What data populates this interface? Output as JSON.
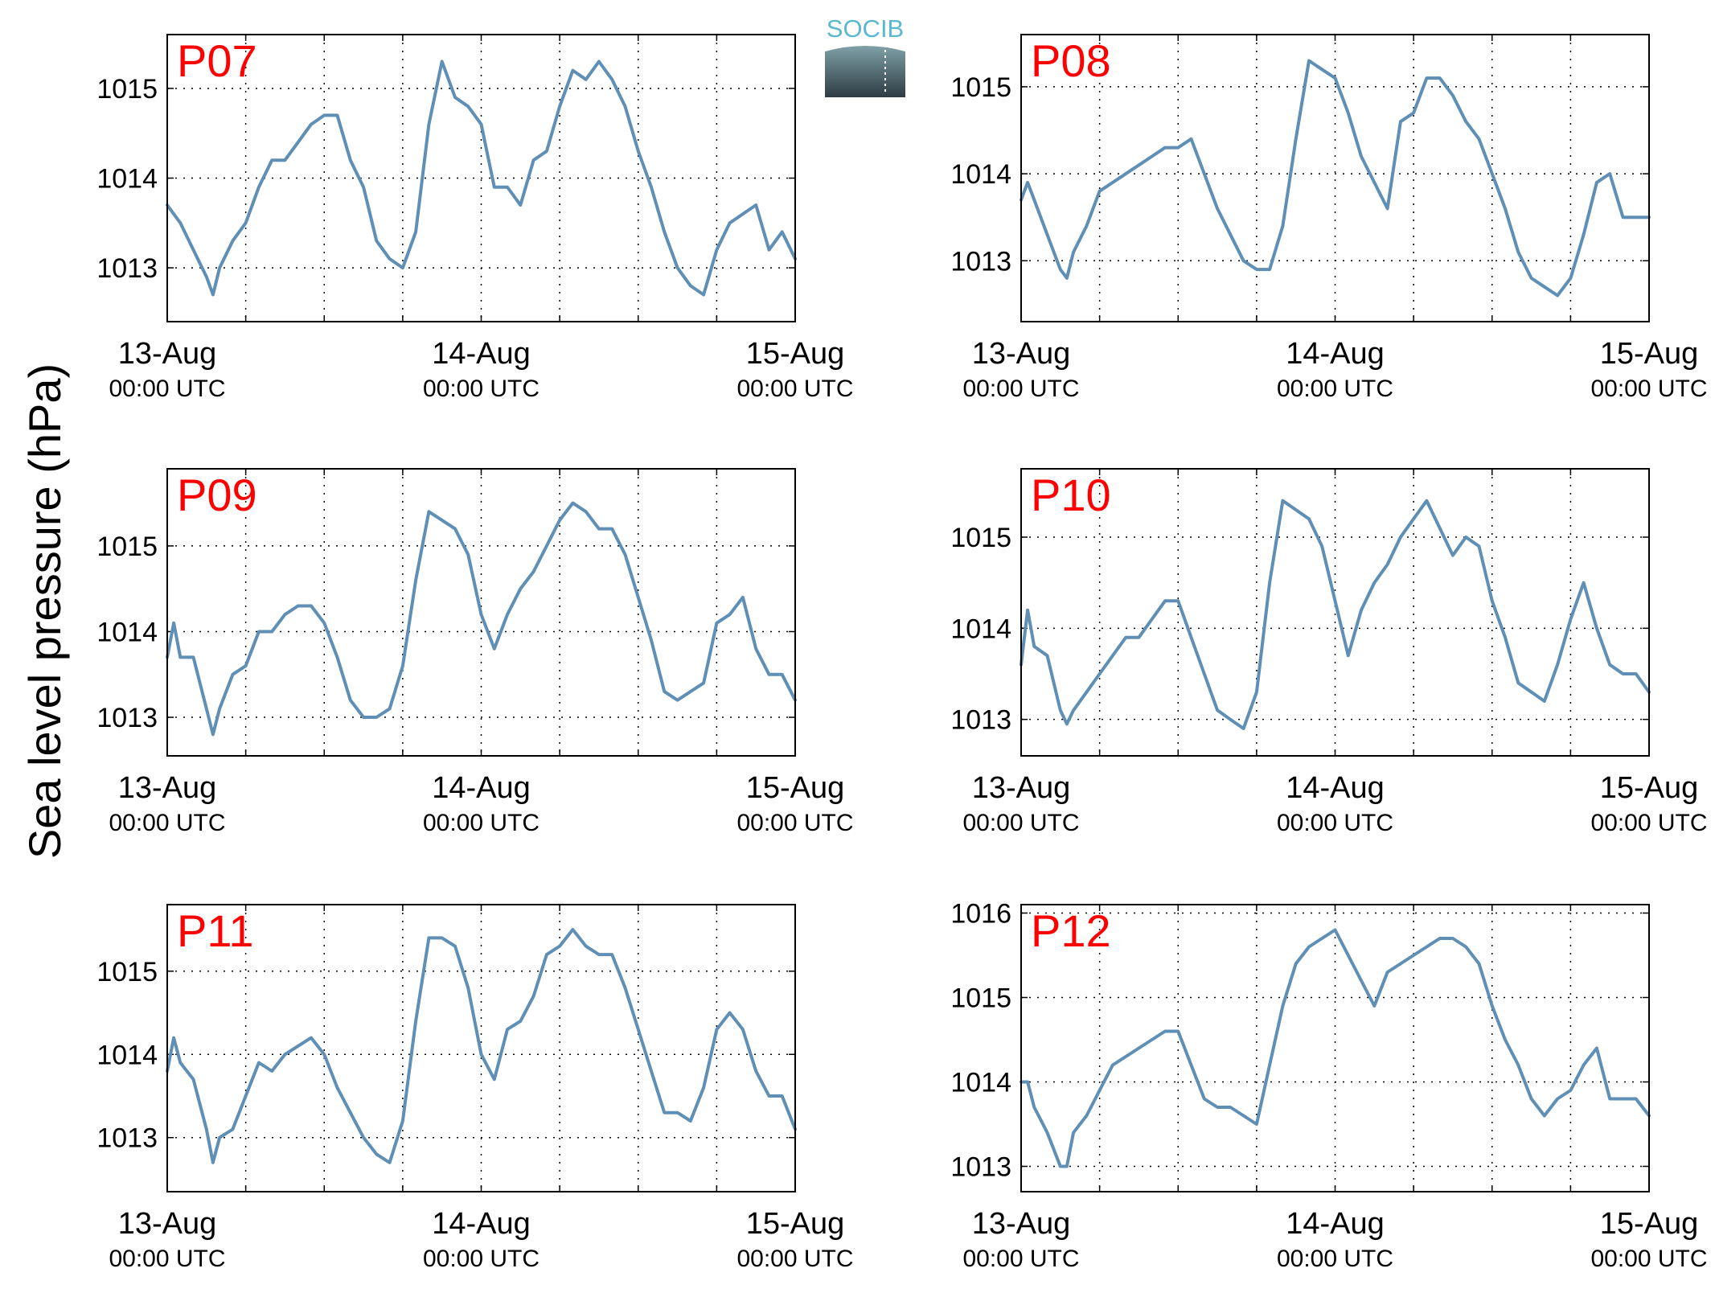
{
  "figure": {
    "ylabel": "Sea level pressure (hPa)",
    "logo": {
      "text": "SOCIB",
      "colors": {
        "text": "#5ab8cf",
        "box_top": "#7fa1a7",
        "box_bottom": "#2e3b44"
      }
    },
    "line_color": "#5f8fb5",
    "label_color": "#ff0000"
  },
  "chart_data": [
    {
      "type": "line",
      "name": "P07",
      "label": "P07",
      "xlim": [
        0,
        48
      ],
      "ylim": [
        1012.4,
        1015.6
      ],
      "yticks": [
        1013,
        1014,
        1015
      ],
      "x_ticks": [
        {
          "x": 0,
          "line1": "13-Aug",
          "line2": "00:00 UTC"
        },
        {
          "x": 24,
          "line1": "14-Aug",
          "line2": "00:00 UTC"
        },
        {
          "x": 48,
          "line1": "15-Aug",
          "line2": "00:00 UTC"
        }
      ],
      "x_grid": [
        6,
        12,
        18,
        24,
        30,
        36,
        42
      ],
      "x": [
        0,
        1,
        2,
        3,
        3.5,
        4,
        5,
        6,
        7,
        8,
        9,
        10,
        11,
        12,
        13,
        14,
        15,
        16,
        17,
        18,
        19,
        20,
        21,
        22,
        23,
        24,
        25,
        26,
        27,
        28,
        29,
        30,
        31,
        32,
        33,
        34,
        35,
        36,
        37,
        38,
        39,
        40,
        41,
        42,
        43,
        44,
        45,
        46,
        47,
        48
      ],
      "y": [
        1013.7,
        1013.5,
        1013.2,
        1012.9,
        1012.7,
        1013.0,
        1013.3,
        1013.5,
        1013.9,
        1014.2,
        1014.2,
        1014.4,
        1014.6,
        1014.7,
        1014.7,
        1014.2,
        1013.9,
        1013.3,
        1013.1,
        1013.0,
        1013.4,
        1014.6,
        1015.3,
        1014.9,
        1014.8,
        1014.6,
        1013.9,
        1013.9,
        1013.7,
        1014.2,
        1014.3,
        1014.8,
        1015.2,
        1015.1,
        1015.3,
        1015.1,
        1014.8,
        1014.3,
        1013.9,
        1013.4,
        1013.0,
        1012.8,
        1012.7,
        1013.2,
        1013.5,
        1013.6,
        1013.7,
        1013.2,
        1013.4,
        1013.1
      ]
    },
    {
      "type": "line",
      "name": "P08",
      "label": "P08",
      "xlim": [
        0,
        48
      ],
      "ylim": [
        1012.3,
        1015.6
      ],
      "yticks": [
        1013,
        1014,
        1015
      ],
      "x_ticks": [
        {
          "x": 0,
          "line1": "13-Aug",
          "line2": "00:00 UTC"
        },
        {
          "x": 24,
          "line1": "14-Aug",
          "line2": "00:00 UTC"
        },
        {
          "x": 48,
          "line1": "15-Aug",
          "line2": "00:00 UTC"
        }
      ],
      "x_grid": [
        6,
        12,
        18,
        24,
        30,
        36,
        42
      ],
      "x": [
        0,
        0.5,
        1,
        2,
        3,
        3.5,
        4,
        5,
        6,
        7,
        8,
        9,
        10,
        11,
        12,
        13,
        14,
        15,
        16,
        17,
        18,
        19,
        20,
        21,
        22,
        23,
        24,
        25,
        26,
        27,
        28,
        29,
        30,
        31,
        32,
        33,
        34,
        35,
        36,
        37,
        38,
        39,
        40,
        41,
        42,
        43,
        44,
        45,
        46,
        47,
        48
      ],
      "y": [
        1013.7,
        1013.9,
        1013.7,
        1013.3,
        1012.9,
        1012.8,
        1013.1,
        1013.4,
        1013.8,
        1013.9,
        1014.0,
        1014.1,
        1014.2,
        1014.3,
        1014.3,
        1014.4,
        1014.0,
        1013.6,
        1013.3,
        1013.0,
        1012.9,
        1012.9,
        1013.4,
        1014.4,
        1015.3,
        1015.2,
        1015.1,
        1014.7,
        1014.2,
        1013.9,
        1013.6,
        1014.6,
        1014.7,
        1015.1,
        1015.1,
        1014.9,
        1014.6,
        1014.4,
        1014.0,
        1013.6,
        1013.1,
        1012.8,
        1012.7,
        1012.6,
        1012.8,
        1013.3,
        1013.9,
        1014.0,
        1013.5,
        1013.5,
        1013.5
      ]
    },
    {
      "type": "line",
      "name": "P09",
      "label": "P09",
      "xlim": [
        0,
        48
      ],
      "ylim": [
        1012.55,
        1015.9
      ],
      "yticks": [
        1013,
        1014,
        1015
      ],
      "x_ticks": [
        {
          "x": 0,
          "line1": "13-Aug",
          "line2": "00:00 UTC"
        },
        {
          "x": 24,
          "line1": "14-Aug",
          "line2": "00:00 UTC"
        },
        {
          "x": 48,
          "line1": "15-Aug",
          "line2": "00:00 UTC"
        }
      ],
      "x_grid": [
        6,
        12,
        18,
        24,
        30,
        36,
        42
      ],
      "x": [
        0,
        0.5,
        1,
        2,
        3,
        3.5,
        4,
        5,
        6,
        7,
        8,
        9,
        10,
        11,
        12,
        13,
        14,
        15,
        16,
        17,
        18,
        19,
        20,
        21,
        22,
        23,
        24,
        25,
        26,
        27,
        28,
        29,
        30,
        31,
        32,
        33,
        34,
        35,
        36,
        37,
        38,
        39,
        40,
        41,
        42,
        43,
        44,
        45,
        46,
        47,
        48
      ],
      "y": [
        1013.7,
        1014.1,
        1013.7,
        1013.7,
        1013.1,
        1012.8,
        1013.1,
        1013.5,
        1013.6,
        1014.0,
        1014.0,
        1014.2,
        1014.3,
        1014.3,
        1014.1,
        1013.7,
        1013.2,
        1013.0,
        1013.0,
        1013.1,
        1013.6,
        1014.6,
        1015.4,
        1015.3,
        1015.2,
        1014.9,
        1014.2,
        1013.8,
        1014.2,
        1014.5,
        1014.7,
        1015.0,
        1015.3,
        1015.5,
        1015.4,
        1015.2,
        1015.2,
        1014.9,
        1014.4,
        1013.9,
        1013.3,
        1013.2,
        1013.3,
        1013.4,
        1014.1,
        1014.2,
        1014.4,
        1013.8,
        1013.5,
        1013.5,
        1013.2
      ]
    },
    {
      "type": "line",
      "name": "P10",
      "label": "P10",
      "xlim": [
        0,
        48
      ],
      "ylim": [
        1012.6,
        1015.75
      ],
      "yticks": [
        1013,
        1014,
        1015
      ],
      "x_ticks": [
        {
          "x": 0,
          "line1": "13-Aug",
          "line2": "00:00 UTC"
        },
        {
          "x": 24,
          "line1": "14-Aug",
          "line2": "00:00 UTC"
        },
        {
          "x": 48,
          "line1": "15-Aug",
          "line2": "00:00 UTC"
        }
      ],
      "x_grid": [
        6,
        12,
        18,
        24,
        30,
        36,
        42
      ],
      "x": [
        0,
        0.5,
        1,
        2,
        3,
        3.5,
        4,
        5,
        6,
        7,
        8,
        9,
        10,
        11,
        12,
        13,
        14,
        15,
        16,
        17,
        18,
        19,
        20,
        21,
        22,
        23,
        24,
        25,
        26,
        27,
        28,
        29,
        30,
        31,
        32,
        33,
        34,
        35,
        36,
        37,
        38,
        39,
        40,
        41,
        42,
        43,
        44,
        45,
        46,
        47,
        48
      ],
      "y": [
        1013.6,
        1014.2,
        1013.8,
        1013.7,
        1013.1,
        1012.95,
        1013.1,
        1013.3,
        1013.5,
        1013.7,
        1013.9,
        1013.9,
        1014.1,
        1014.3,
        1014.3,
        1013.9,
        1013.5,
        1013.1,
        1013.0,
        1012.9,
        1013.3,
        1014.5,
        1015.4,
        1015.3,
        1015.2,
        1014.9,
        1014.3,
        1013.7,
        1014.2,
        1014.5,
        1014.7,
        1015.0,
        1015.2,
        1015.4,
        1015.1,
        1014.8,
        1015.0,
        1014.9,
        1014.3,
        1013.9,
        1013.4,
        1013.3,
        1013.2,
        1013.6,
        1014.1,
        1014.5,
        1014.0,
        1013.6,
        1013.5,
        1013.5,
        1013.3
      ]
    },
    {
      "type": "line",
      "name": "P11",
      "label": "P11",
      "xlim": [
        0,
        48
      ],
      "ylim": [
        1012.35,
        1015.8
      ],
      "yticks": [
        1013,
        1014,
        1015
      ],
      "x_ticks": [
        {
          "x": 0,
          "line1": "13-Aug",
          "line2": "00:00 UTC"
        },
        {
          "x": 24,
          "line1": "14-Aug",
          "line2": "00:00 UTC"
        },
        {
          "x": 48,
          "line1": "15-Aug",
          "line2": "00:00 UTC"
        }
      ],
      "x_grid": [
        6,
        12,
        18,
        24,
        30,
        36,
        42
      ],
      "x": [
        0,
        0.5,
        1,
        2,
        3,
        3.5,
        4,
        5,
        6,
        7,
        8,
        9,
        10,
        11,
        12,
        13,
        14,
        15,
        16,
        17,
        18,
        19,
        20,
        21,
        22,
        23,
        24,
        25,
        26,
        27,
        28,
        29,
        30,
        31,
        32,
        33,
        34,
        35,
        36,
        37,
        38,
        39,
        40,
        41,
        42,
        43,
        44,
        45,
        46,
        47,
        48
      ],
      "y": [
        1013.8,
        1014.2,
        1013.9,
        1013.7,
        1013.1,
        1012.7,
        1013.0,
        1013.1,
        1013.5,
        1013.9,
        1013.8,
        1014.0,
        1014.1,
        1014.2,
        1014.0,
        1013.6,
        1013.3,
        1013.0,
        1012.8,
        1012.7,
        1013.2,
        1014.4,
        1015.4,
        1015.4,
        1015.3,
        1014.8,
        1014.0,
        1013.7,
        1014.3,
        1014.4,
        1014.7,
        1015.2,
        1015.3,
        1015.5,
        1015.3,
        1015.2,
        1015.2,
        1014.8,
        1014.3,
        1013.8,
        1013.3,
        1013.3,
        1013.2,
        1013.6,
        1014.3,
        1014.5,
        1014.3,
        1013.8,
        1013.5,
        1013.5,
        1013.1
      ]
    },
    {
      "type": "line",
      "name": "P12",
      "label": "P12",
      "xlim": [
        0,
        48
      ],
      "ylim": [
        1012.7,
        1016.1
      ],
      "yticks": [
        1013,
        1014,
        1015,
        1016
      ],
      "x_ticks": [
        {
          "x": 0,
          "line1": "13-Aug",
          "line2": "00:00 UTC"
        },
        {
          "x": 24,
          "line1": "14-Aug",
          "line2": "00:00 UTC"
        },
        {
          "x": 48,
          "line1": "15-Aug",
          "line2": "00:00 UTC"
        }
      ],
      "x_grid": [
        6,
        12,
        18,
        24,
        30,
        36,
        42
      ],
      "x": [
        0,
        0.5,
        1,
        2,
        3,
        3.5,
        4,
        5,
        6,
        7,
        8,
        9,
        10,
        11,
        12,
        13,
        14,
        15,
        16,
        17,
        18,
        19,
        20,
        21,
        22,
        23,
        24,
        25,
        26,
        27,
        28,
        29,
        30,
        31,
        32,
        33,
        34,
        35,
        36,
        37,
        38,
        39,
        40,
        41,
        42,
        43,
        44,
        45,
        46,
        47,
        48
      ],
      "y": [
        1014.0,
        1014.0,
        1013.7,
        1013.4,
        1013.0,
        1013.0,
        1013.4,
        1013.6,
        1013.9,
        1014.2,
        1014.3,
        1014.4,
        1014.5,
        1014.6,
        1014.6,
        1014.2,
        1013.8,
        1013.7,
        1013.7,
        1013.6,
        1013.5,
        1014.2,
        1014.9,
        1015.4,
        1015.6,
        1015.7,
        1015.8,
        1015.5,
        1015.2,
        1014.9,
        1015.3,
        1015.4,
        1015.5,
        1015.6,
        1015.7,
        1015.7,
        1015.6,
        1015.4,
        1014.9,
        1014.5,
        1014.2,
        1013.8,
        1013.6,
        1013.8,
        1013.9,
        1014.2,
        1014.4,
        1013.8,
        1013.8,
        1013.8,
        1013.6
      ]
    }
  ]
}
